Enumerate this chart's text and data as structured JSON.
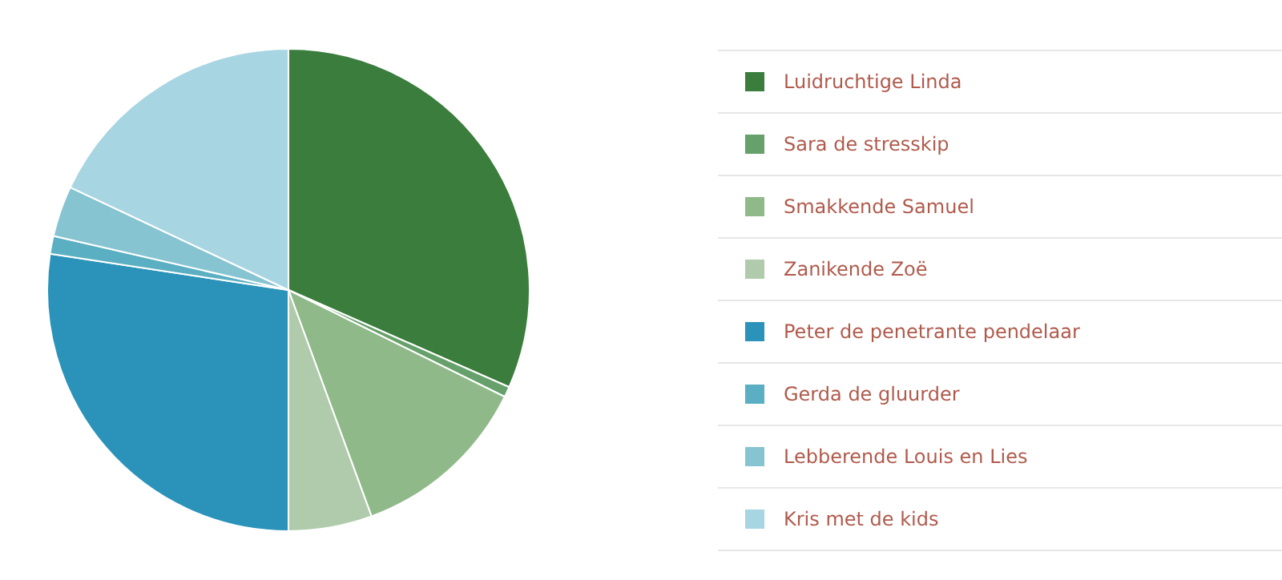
{
  "chart_data": {
    "type": "pie",
    "categories": [
      "Luidruchtige Linda",
      "Sara de stresskip",
      "Smakkende Samuel",
      "Zanikende Zoë",
      "Peter de penetrante pendelaar",
      "Gerda de gluurder",
      "Lebberende Louis en Lies",
      "Kris met de kids"
    ],
    "values": [
      31.6,
      0.7,
      12.1,
      5.6,
      27.4,
      1.2,
      3.4,
      18.0
    ],
    "colors": [
      "#3a7d3c",
      "#66a06a",
      "#90b98a",
      "#b0cbab",
      "#2b93b9",
      "#5aafc2",
      "#86c4d1",
      "#a8d5e2"
    ],
    "legend": "right"
  }
}
